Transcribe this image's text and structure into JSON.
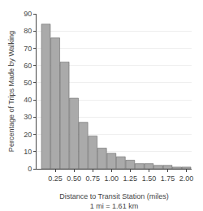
{
  "chart_data": {
    "type": "bar",
    "x": [
      0.125,
      0.25,
      0.375,
      0.5,
      0.625,
      0.75,
      0.875,
      1.0,
      1.125,
      1.25,
      1.375,
      1.5,
      1.625,
      1.75,
      1.875,
      2.0
    ],
    "values": [
      84,
      76,
      62,
      41,
      27,
      19,
      12,
      9,
      7,
      5,
      3,
      3,
      2,
      2,
      1,
      1
    ],
    "color": "#aaaaaa",
    "xlabel": "Distance to Transit Station (miles)\n1 mi = 1.61 km",
    "ylabel": "Percentage of Trips Made by Walking",
    "xlim": [
      0.0,
      2.07
    ],
    "xticks": [
      0.25,
      {
        "value": 0.5,
        "label": "0.50"
      },
      0.75,
      {
        "value": 1.0,
        "label": "1.00"
      },
      1.25,
      {
        "value": 1.5,
        "label": "1.50"
      },
      1.75,
      {
        "value": 2.0,
        "label": "2.00"
      }
    ],
    "ylim": [
      0,
      90
    ],
    "yticks": [
      0,
      10,
      20,
      30,
      40,
      50,
      60,
      70,
      80,
      90
    ],
    "grid": "y"
  }
}
